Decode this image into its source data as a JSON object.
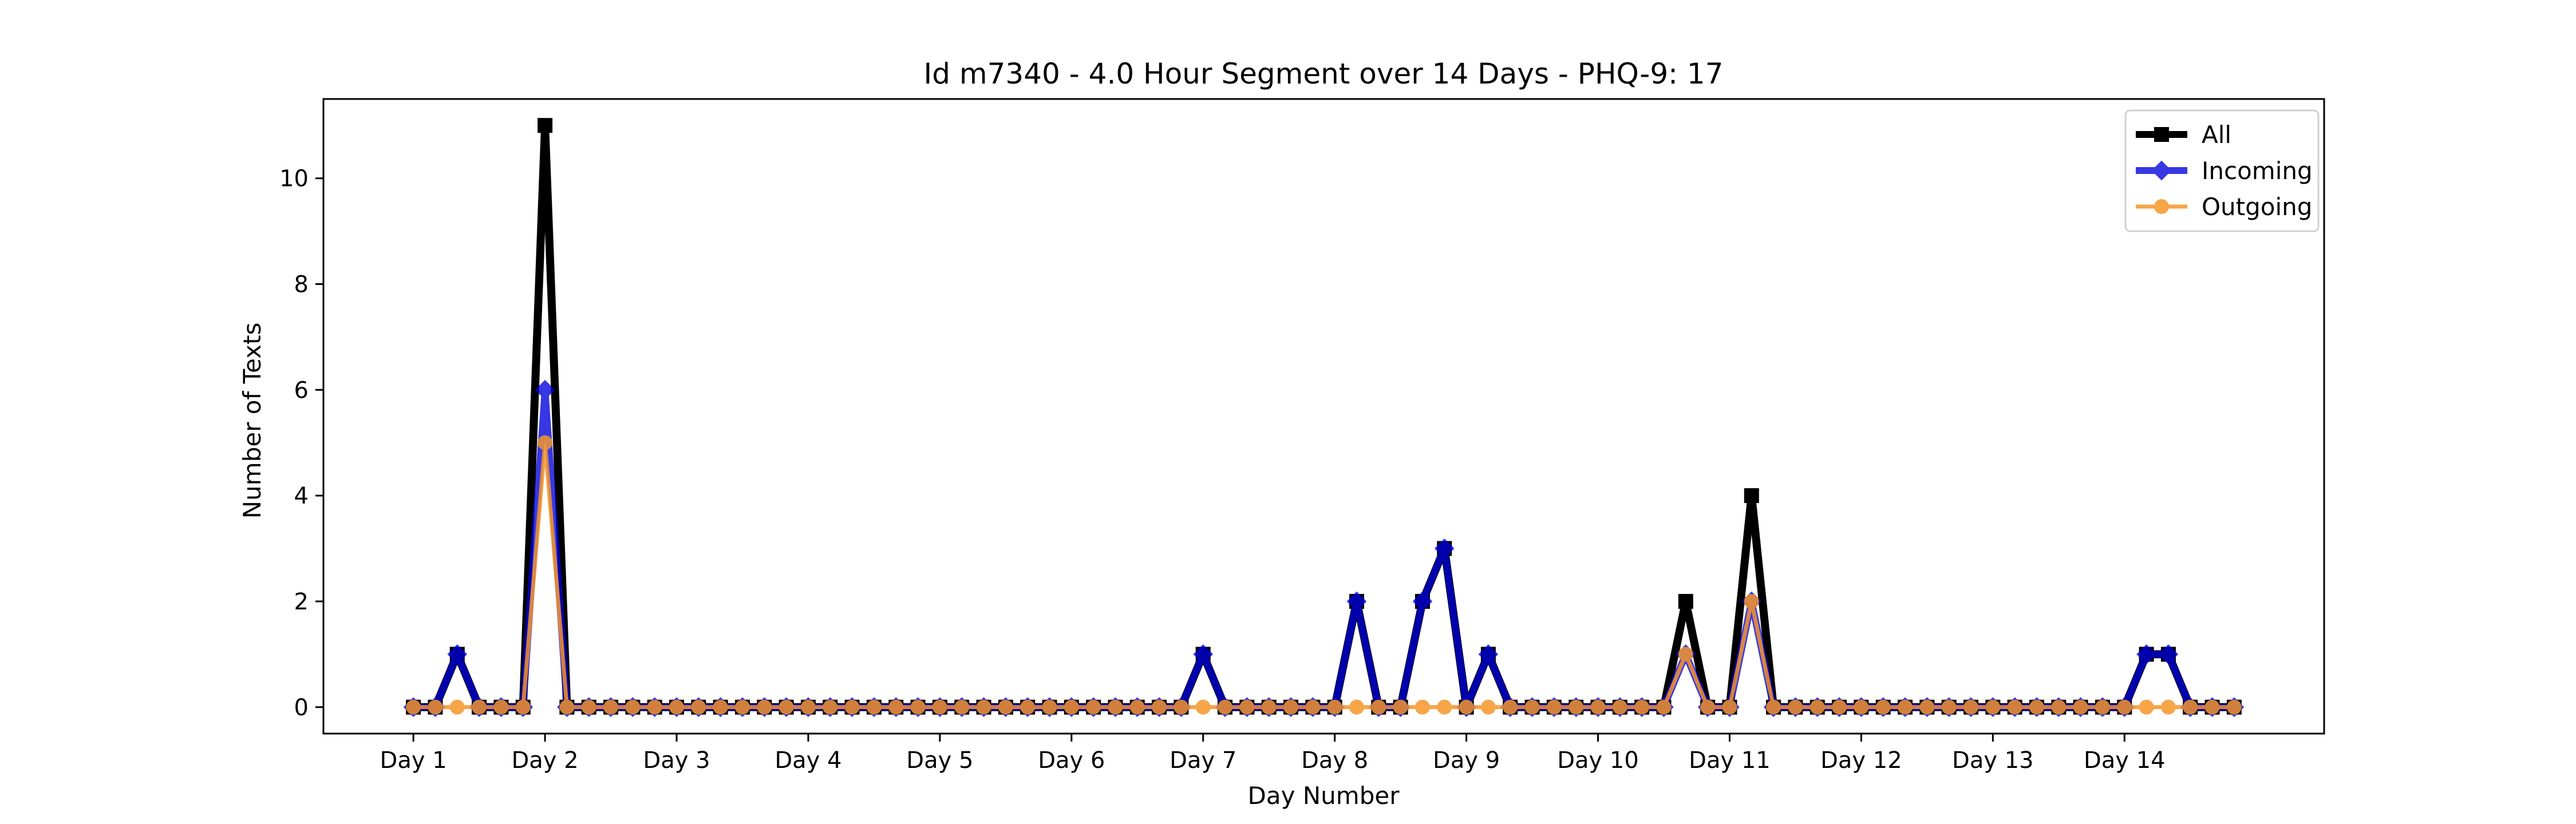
{
  "chart_data": {
    "type": "line",
    "title": "Id m7340 - 4.0 Hour Segment over 14 Days - PHQ-9: 17",
    "xlabel": "Day Number",
    "ylabel": "Number of Texts",
    "ylim": [
      -0.5,
      11.5
    ],
    "yticks": [
      0,
      2,
      4,
      6,
      8,
      10
    ],
    "xtick_labels": [
      "Day 1",
      "Day 2",
      "Day 3",
      "Day 4",
      "Day 5",
      "Day 6",
      "Day 7",
      "Day 8",
      "Day 9",
      "Day 10",
      "Day 11",
      "Day 12",
      "Day 13",
      "Day 14"
    ],
    "segments_per_day": 6,
    "grid": false,
    "legend_position": "top-right",
    "series": [
      {
        "name": "All",
        "color": "#000000",
        "marker": "square",
        "values": [
          0,
          0,
          1,
          0,
          0,
          0,
          11,
          0,
          0,
          0,
          0,
          0,
          0,
          0,
          0,
          0,
          0,
          0,
          0,
          0,
          0,
          0,
          0,
          0,
          0,
          0,
          0,
          0,
          0,
          0,
          0,
          0,
          0,
          0,
          0,
          0,
          1,
          0,
          0,
          0,
          0,
          0,
          0,
          2,
          0,
          0,
          2,
          3,
          0,
          1,
          0,
          0,
          0,
          0,
          0,
          0,
          0,
          0,
          2,
          0,
          0,
          4,
          0,
          0,
          0,
          0,
          0,
          0,
          0,
          0,
          0,
          0,
          0,
          0,
          0,
          0,
          0,
          0,
          0,
          1,
          1,
          0,
          0,
          0
        ]
      },
      {
        "name": "Incoming",
        "color": "#0000dd",
        "marker": "diamond",
        "values": [
          0,
          0,
          1,
          0,
          0,
          0,
          6,
          0,
          0,
          0,
          0,
          0,
          0,
          0,
          0,
          0,
          0,
          0,
          0,
          0,
          0,
          0,
          0,
          0,
          0,
          0,
          0,
          0,
          0,
          0,
          0,
          0,
          0,
          0,
          0,
          0,
          1,
          0,
          0,
          0,
          0,
          0,
          0,
          2,
          0,
          0,
          2,
          3,
          0,
          1,
          0,
          0,
          0,
          0,
          0,
          0,
          0,
          0,
          1,
          0,
          0,
          2,
          0,
          0,
          0,
          0,
          0,
          0,
          0,
          0,
          0,
          0,
          0,
          0,
          0,
          0,
          0,
          0,
          0,
          1,
          1,
          0,
          0,
          0
        ]
      },
      {
        "name": "Outgoing",
        "color": "#f5962a",
        "marker": "circle",
        "values": [
          0,
          0,
          0,
          0,
          0,
          0,
          5,
          0,
          0,
          0,
          0,
          0,
          0,
          0,
          0,
          0,
          0,
          0,
          0,
          0,
          0,
          0,
          0,
          0,
          0,
          0,
          0,
          0,
          0,
          0,
          0,
          0,
          0,
          0,
          0,
          0,
          0,
          0,
          0,
          0,
          0,
          0,
          0,
          0,
          0,
          0,
          0,
          0,
          0,
          0,
          0,
          0,
          0,
          0,
          0,
          0,
          0,
          0,
          1,
          0,
          0,
          2,
          0,
          0,
          0,
          0,
          0,
          0,
          0,
          0,
          0,
          0,
          0,
          0,
          0,
          0,
          0,
          0,
          0,
          0,
          0,
          0,
          0,
          0
        ]
      }
    ]
  }
}
